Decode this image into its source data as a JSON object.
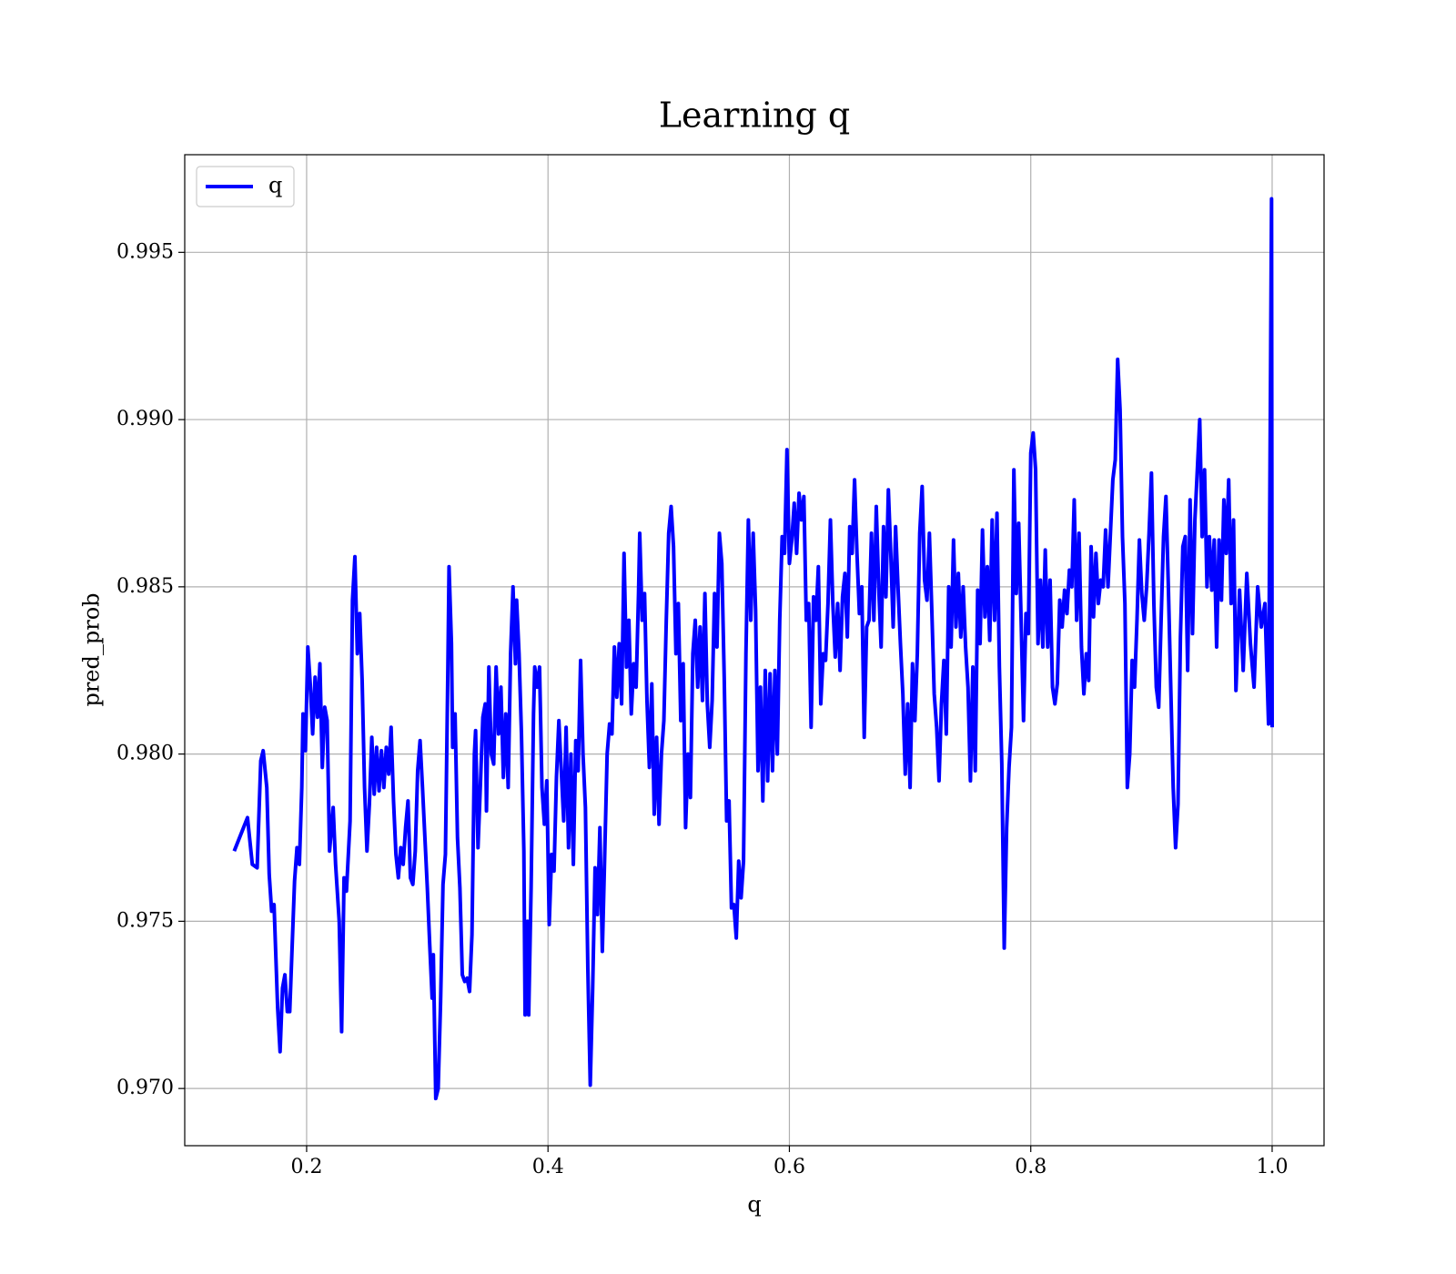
{
  "chart_data": {
    "type": "line",
    "title": "Learning q",
    "xlabel": "q",
    "ylabel": "pred_prob",
    "legend": "upper left",
    "grid": true,
    "xlim": [
      0.099,
      1.043
    ],
    "ylim": [
      0.96829,
      0.99792
    ],
    "xticks": [
      0.2,
      0.4,
      0.6,
      0.8,
      {
        "value": 1,
        "label": "1.0"
      }
    ],
    "yticks": [
      {
        "value": 0.97,
        "label": "0.970"
      },
      0.975,
      {
        "value": 0.98,
        "label": "0.980"
      },
      0.985,
      {
        "value": 0.99,
        "label": "0.990"
      },
      0.995
    ],
    "x": [
      0.14,
      0.151,
      0.155,
      0.159,
      0.162,
      0.164,
      0.167,
      0.169,
      0.171,
      0.173,
      0.176,
      0.178,
      0.18,
      0.182,
      0.184,
      0.186,
      0.19,
      0.192,
      0.194,
      0.196,
      0.197,
      0.199,
      0.201,
      0.203,
      0.205,
      0.207,
      0.209,
      0.211,
      0.213,
      0.215,
      0.217,
      0.219,
      0.222,
      0.224,
      0.227,
      0.229,
      0.231,
      0.233,
      0.236,
      0.238,
      0.24,
      0.242,
      0.244,
      0.246,
      0.248,
      0.25,
      0.252,
      0.254,
      0.256,
      0.258,
      0.26,
      0.262,
      0.264,
      0.266,
      0.268,
      0.27,
      0.272,
      0.274,
      0.276,
      0.278,
      0.28,
      0.282,
      0.284,
      0.286,
      0.288,
      0.29,
      0.292,
      0.294,
      0.296,
      0.298,
      0.3,
      0.302,
      0.304,
      0.305,
      0.307,
      0.309,
      0.311,
      0.313,
      0.315,
      0.317,
      0.318,
      0.32,
      0.321,
      0.323,
      0.325,
      0.327,
      0.329,
      0.331,
      0.333,
      0.335,
      0.337,
      0.339,
      0.34,
      0.342,
      0.344,
      0.346,
      0.348,
      0.349,
      0.351,
      0.353,
      0.355,
      0.357,
      0.359,
      0.361,
      0.363,
      0.365,
      0.367,
      0.369,
      0.371,
      0.373,
      0.374,
      0.376,
      0.378,
      0.38,
      0.381,
      0.383,
      0.384,
      0.386,
      0.388,
      0.389,
      0.391,
      0.393,
      0.395,
      0.397,
      0.399,
      0.401,
      0.403,
      0.405,
      0.407,
      0.409,
      0.411,
      0.413,
      0.415,
      0.417,
      0.419,
      0.421,
      0.423,
      0.425,
      0.427,
      0.429,
      0.431,
      0.433,
      0.435,
      0.437,
      0.439,
      0.441,
      0.443,
      0.445,
      0.447,
      0.449,
      0.451,
      0.453,
      0.455,
      0.457,
      0.459,
      0.461,
      0.463,
      0.465,
      0.467,
      0.469,
      0.471,
      0.473,
      0.475,
      0.476,
      0.478,
      0.48,
      0.482,
      0.484,
      0.486,
      0.488,
      0.49,
      0.492,
      0.494,
      0.496,
      0.498,
      0.5,
      0.502,
      0.504,
      0.506,
      0.508,
      0.51,
      0.512,
      0.514,
      0.516,
      0.518,
      0.52,
      0.522,
      0.524,
      0.526,
      0.528,
      0.53,
      0.532,
      0.534,
      0.536,
      0.538,
      0.54,
      0.542,
      0.544,
      0.546,
      0.548,
      0.55,
      0.552,
      0.554,
      0.556,
      0.558,
      0.56,
      0.562,
      0.564,
      0.566,
      0.568,
      0.57,
      0.572,
      0.574,
      0.576,
      0.578,
      0.58,
      0.582,
      0.584,
      0.586,
      0.588,
      0.59,
      0.592,
      0.594,
      0.596,
      0.598,
      0.6,
      0.602,
      0.604,
      0.606,
      0.608,
      0.61,
      0.612,
      0.614,
      0.616,
      0.618,
      0.62,
      0.622,
      0.624,
      0.626,
      0.628,
      0.63,
      0.632,
      0.634,
      0.636,
      0.638,
      0.64,
      0.642,
      0.644,
      0.646,
      0.648,
      0.65,
      0.652,
      0.654,
      0.656,
      0.658,
      0.66,
      0.662,
      0.664,
      0.666,
      0.668,
      0.67,
      0.672,
      0.674,
      0.676,
      0.678,
      0.68,
      0.682,
      0.684,
      0.686,
      0.688,
      0.69,
      0.692,
      0.694,
      0.696,
      0.698,
      0.7,
      0.702,
      0.704,
      0.706,
      0.708,
      0.71,
      0.712,
      0.714,
      0.716,
      0.718,
      0.72,
      0.722,
      0.724,
      0.726,
      0.728,
      0.73,
      0.732,
      0.734,
      0.736,
      0.738,
      0.74,
      0.742,
      0.744,
      0.746,
      0.748,
      0.75,
      0.752,
      0.754,
      0.756,
      0.758,
      0.76,
      0.762,
      0.764,
      0.766,
      0.768,
      0.77,
      0.772,
      0.774,
      0.776,
      0.778,
      0.78,
      0.782,
      0.784,
      0.786,
      0.788,
      0.79,
      0.792,
      0.794,
      0.796,
      0.798,
      0.8,
      0.802,
      0.804,
      0.806,
      0.808,
      0.81,
      0.812,
      0.814,
      0.816,
      0.818,
      0.82,
      0.822,
      0.824,
      0.826,
      0.828,
      0.83,
      0.832,
      0.834,
      0.836,
      0.838,
      0.84,
      0.842,
      0.844,
      0.846,
      0.848,
      0.85,
      0.852,
      0.854,
      0.856,
      0.858,
      0.86,
      0.862,
      0.864,
      0.866,
      0.868,
      0.87,
      0.872,
      0.874,
      0.876,
      0.878,
      0.88,
      0.882,
      0.884,
      0.886,
      0.888,
      0.89,
      0.892,
      0.894,
      0.896,
      0.898,
      0.9,
      0.902,
      0.904,
      0.906,
      0.908,
      0.91,
      0.912,
      0.914,
      0.916,
      0.918,
      0.92,
      0.922,
      0.924,
      0.926,
      0.928,
      0.93,
      0.932,
      0.934,
      0.936,
      0.938,
      0.94,
      0.942,
      0.944,
      0.946,
      0.948,
      0.95,
      0.952,
      0.954,
      0.956,
      0.958,
      0.96,
      0.962,
      0.964,
      0.966,
      0.968,
      0.97,
      0.973,
      0.976,
      0.979,
      0.982,
      0.985,
      0.988,
      0.991,
      0.994,
      0.997,
      0.9995,
      1.0
    ],
    "series": [
      {
        "name": "q",
        "color": "#0000ff",
        "values": [
          0.9771,
          0.9781,
          0.9767,
          0.9766,
          0.9798,
          0.9801,
          0.979,
          0.9764,
          0.9753,
          0.9755,
          0.9724,
          0.9711,
          0.973,
          0.9734,
          0.9723,
          0.9723,
          0.9762,
          0.9772,
          0.9767,
          0.979,
          0.9812,
          0.9801,
          0.9832,
          0.9821,
          0.9806,
          0.9823,
          0.9811,
          0.9827,
          0.9796,
          0.9814,
          0.981,
          0.9771,
          0.9784,
          0.9767,
          0.975,
          0.9717,
          0.9763,
          0.9759,
          0.978,
          0.9846,
          0.9859,
          0.983,
          0.9842,
          0.9822,
          0.979,
          0.9771,
          0.9785,
          0.9805,
          0.9788,
          0.9802,
          0.9789,
          0.9801,
          0.979,
          0.9802,
          0.9794,
          0.9808,
          0.9786,
          0.977,
          0.9763,
          0.9772,
          0.9767,
          0.9778,
          0.9786,
          0.9763,
          0.9761,
          0.9771,
          0.9795,
          0.9804,
          0.979,
          0.9775,
          0.976,
          0.9743,
          0.9727,
          0.974,
          0.9697,
          0.97,
          0.9726,
          0.9761,
          0.977,
          0.9825,
          0.9856,
          0.9833,
          0.9802,
          0.9812,
          0.9775,
          0.976,
          0.9734,
          0.9732,
          0.9733,
          0.9729,
          0.9746,
          0.98,
          0.9807,
          0.9772,
          0.9791,
          0.9811,
          0.9815,
          0.9783,
          0.9826,
          0.98,
          0.9797,
          0.9826,
          0.9806,
          0.982,
          0.9793,
          0.9812,
          0.979,
          0.983,
          0.985,
          0.9827,
          0.9846,
          0.983,
          0.9806,
          0.9771,
          0.9722,
          0.975,
          0.9722,
          0.976,
          0.9812,
          0.9826,
          0.982,
          0.9826,
          0.979,
          0.9779,
          0.9792,
          0.9749,
          0.977,
          0.9765,
          0.9793,
          0.981,
          0.9795,
          0.978,
          0.9808,
          0.9772,
          0.98,
          0.9767,
          0.9804,
          0.9795,
          0.9828,
          0.98,
          0.9784,
          0.9736,
          0.9701,
          0.973,
          0.9766,
          0.9752,
          0.9778,
          0.9741,
          0.977,
          0.98,
          0.9809,
          0.9806,
          0.9832,
          0.9817,
          0.9833,
          0.9815,
          0.986,
          0.9826,
          0.984,
          0.9812,
          0.9827,
          0.982,
          0.9848,
          0.9866,
          0.984,
          0.9848,
          0.9816,
          0.9796,
          0.9821,
          0.9782,
          0.9805,
          0.9779,
          0.98,
          0.981,
          0.984,
          0.9866,
          0.9874,
          0.9862,
          0.983,
          0.9845,
          0.981,
          0.9827,
          0.9778,
          0.98,
          0.9787,
          0.983,
          0.984,
          0.982,
          0.9838,
          0.9816,
          0.9848,
          0.9815,
          0.9802,
          0.9816,
          0.9848,
          0.9832,
          0.9866,
          0.9857,
          0.9823,
          0.978,
          0.9786,
          0.9754,
          0.9755,
          0.9745,
          0.9768,
          0.9757,
          0.9768,
          0.983,
          0.987,
          0.984,
          0.9866,
          0.9843,
          0.9795,
          0.982,
          0.9786,
          0.9825,
          0.9792,
          0.9824,
          0.9795,
          0.9825,
          0.98,
          0.984,
          0.9865,
          0.986,
          0.9891,
          0.9857,
          0.9864,
          0.9875,
          0.986,
          0.9878,
          0.987,
          0.9877,
          0.984,
          0.9845,
          0.9808,
          0.9847,
          0.984,
          0.9856,
          0.9815,
          0.983,
          0.9828,
          0.9845,
          0.987,
          0.9845,
          0.9829,
          0.9845,
          0.9825,
          0.9847,
          0.9854,
          0.9835,
          0.9868,
          0.986,
          0.9882,
          0.986,
          0.9842,
          0.985,
          0.9805,
          0.9838,
          0.984,
          0.9866,
          0.984,
          0.9874,
          0.985,
          0.9832,
          0.9868,
          0.9847,
          0.9879,
          0.986,
          0.9838,
          0.9868,
          0.985,
          0.9833,
          0.9818,
          0.9794,
          0.9815,
          0.979,
          0.9827,
          0.981,
          0.983,
          0.9866,
          0.988,
          0.9852,
          0.9846,
          0.9866,
          0.9843,
          0.9818,
          0.9808,
          0.9792,
          0.9815,
          0.9828,
          0.9806,
          0.985,
          0.9832,
          0.9864,
          0.9838,
          0.9854,
          0.9835,
          0.985,
          0.9832,
          0.982,
          0.9792,
          0.9826,
          0.9795,
          0.9849,
          0.9833,
          0.9867,
          0.9841,
          0.9856,
          0.9834,
          0.987,
          0.984,
          0.9872,
          0.9826,
          0.9797,
          0.9742,
          0.9778,
          0.9796,
          0.9808,
          0.9885,
          0.9848,
          0.9869,
          0.984,
          0.981,
          0.9842,
          0.9836,
          0.989,
          0.9896,
          0.9885,
          0.9833,
          0.9852,
          0.9832,
          0.9861,
          0.9832,
          0.9852,
          0.982,
          0.9815,
          0.9821,
          0.9846,
          0.9838,
          0.9849,
          0.9842,
          0.9855,
          0.985,
          0.9876,
          0.984,
          0.9866,
          0.9832,
          0.9818,
          0.983,
          0.9822,
          0.9862,
          0.9841,
          0.986,
          0.9845,
          0.9852,
          0.985,
          0.9867,
          0.985,
          0.9866,
          0.9882,
          0.9888,
          0.9918,
          0.9903,
          0.9865,
          0.9845,
          0.979,
          0.98,
          0.9828,
          0.982,
          0.984,
          0.9864,
          0.9848,
          0.984,
          0.985,
          0.9866,
          0.9884,
          0.9845,
          0.982,
          0.9814,
          0.984,
          0.9865,
          0.9877,
          0.985,
          0.982,
          0.979,
          0.9772,
          0.9785,
          0.9835,
          0.9862,
          0.9865,
          0.9825,
          0.9876,
          0.9836,
          0.987,
          0.9885,
          0.99,
          0.9865,
          0.9885,
          0.985,
          0.9865,
          0.9849,
          0.9864,
          0.9832,
          0.9864,
          0.9846,
          0.9876,
          0.986,
          0.9882,
          0.9845,
          0.987,
          0.9819,
          0.9849,
          0.9825,
          0.9854,
          0.9833,
          0.982,
          0.985,
          0.9838,
          0.9845,
          0.9809,
          0.9966,
          0.9808
        ]
      }
    ]
  }
}
